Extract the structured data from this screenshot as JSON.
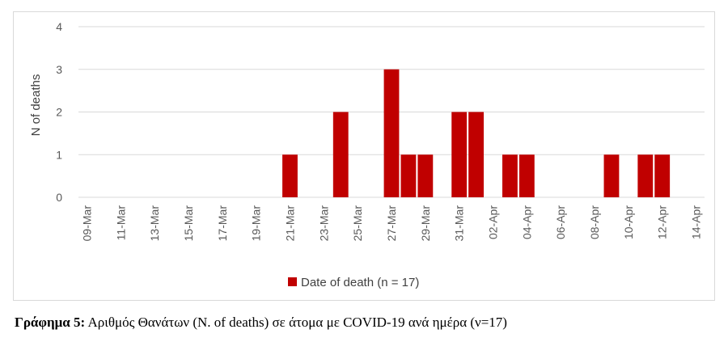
{
  "chart_data": {
    "type": "bar",
    "categories": [
      "09-Mar",
      "10-Mar",
      "11-Mar",
      "12-Mar",
      "13-Mar",
      "14-Mar",
      "15-Mar",
      "16-Mar",
      "17-Mar",
      "18-Mar",
      "19-Mar",
      "20-Mar",
      "21-Mar",
      "22-Mar",
      "23-Mar",
      "24-Mar",
      "25-Mar",
      "26-Mar",
      "27-Mar",
      "28-Mar",
      "29-Mar",
      "30-Mar",
      "31-Mar",
      "01-Apr",
      "02-Apr",
      "03-Apr",
      "04-Apr",
      "05-Apr",
      "06-Apr",
      "07-Apr",
      "08-Apr",
      "09-Apr",
      "10-Apr",
      "11-Apr",
      "12-Apr",
      "13-Apr",
      "14-Apr"
    ],
    "tick_labels": [
      "09-Mar",
      "11-Mar",
      "13-Mar",
      "15-Mar",
      "17-Mar",
      "19-Mar",
      "21-Mar",
      "23-Mar",
      "25-Mar",
      "27-Mar",
      "29-Mar",
      "31-Mar",
      "02-Apr",
      "04-Apr",
      "06-Apr",
      "08-Apr",
      "10-Apr",
      "12-Apr",
      "14-Apr"
    ],
    "values": [
      0,
      0,
      0,
      0,
      0,
      0,
      0,
      0,
      0,
      0,
      0,
      0,
      1,
      0,
      0,
      2,
      0,
      0,
      3,
      1,
      1,
      0,
      2,
      2,
      0,
      1,
      1,
      0,
      0,
      0,
      0,
      1,
      0,
      1,
      1,
      0,
      0
    ],
    "series": [
      {
        "name": "Date of death (n = 17)",
        "color": "#c00000"
      }
    ],
    "ylabel": "N of deaths",
    "xlabel": "",
    "ylim": [
      0,
      4
    ],
    "yticks": [
      0,
      1,
      2,
      3,
      4
    ],
    "grid": true,
    "legend": "bottom"
  },
  "caption": {
    "label": "Γράφημα 5:",
    "text": " Αριθμός Θανάτων (N. of deaths) σε άτομα με COVID-19 ανά ημέρα (ν=17)"
  }
}
